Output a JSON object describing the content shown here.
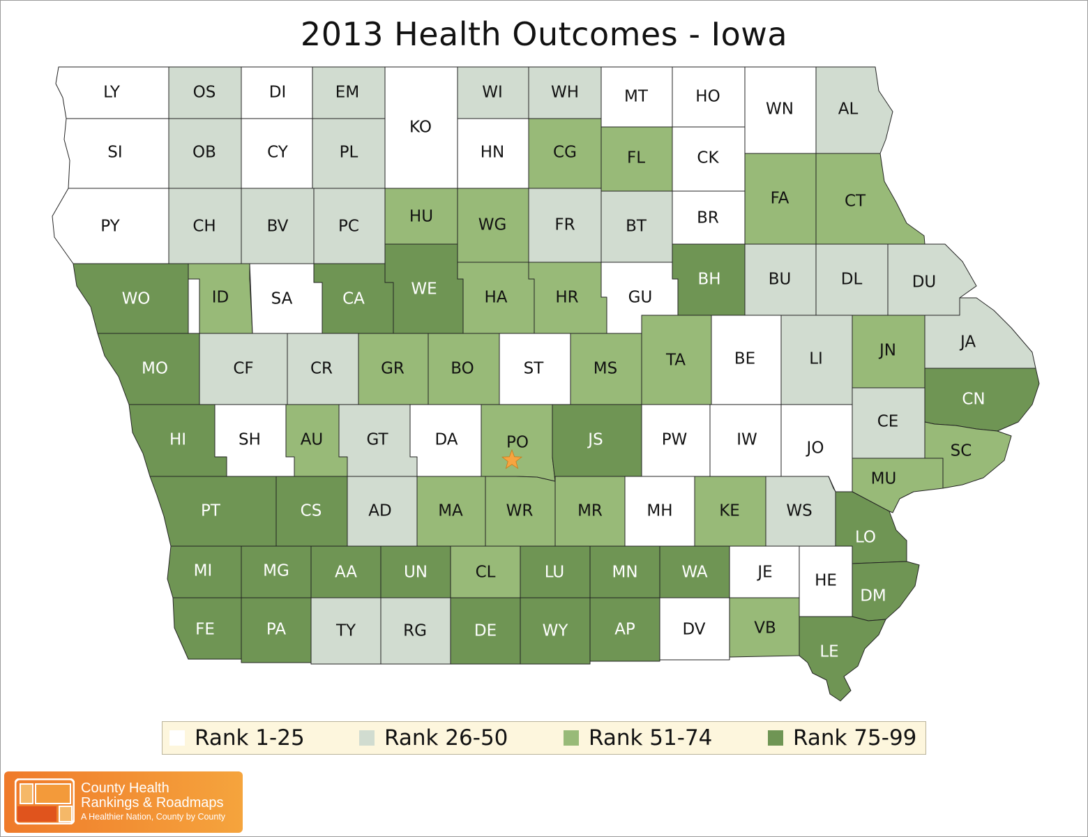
{
  "title": "2013 Health Outcomes - Iowa",
  "colors": {
    "rank_1_25": "#ffffff",
    "rank_26_50": "#d1dcd0",
    "rank_51_74": "#98ba78",
    "rank_75_99": "#6f9554",
    "border": "#222222",
    "star": "#f7a440",
    "legend_bg": "#fdf6dd",
    "logo_orange": "#ef7a2a"
  },
  "legend": [
    {
      "label": "Rank 1-25",
      "class": "rank_1_25"
    },
    {
      "label": "Rank 26-50",
      "class": "rank_26_50"
    },
    {
      "label": "Rank 51-74",
      "class": "rank_51_74"
    },
    {
      "label": "Rank 75-99",
      "class": "rank_75_99"
    }
  ],
  "counties": [
    {
      "abbr": "LY",
      "rank_class": "rank_1_25"
    },
    {
      "abbr": "OS",
      "rank_class": "rank_26_50"
    },
    {
      "abbr": "DI",
      "rank_class": "rank_1_25"
    },
    {
      "abbr": "EM",
      "rank_class": "rank_26_50"
    },
    {
      "abbr": "KO",
      "rank_class": "rank_1_25"
    },
    {
      "abbr": "WI",
      "rank_class": "rank_26_50"
    },
    {
      "abbr": "WH",
      "rank_class": "rank_26_50"
    },
    {
      "abbr": "MT",
      "rank_class": "rank_1_25"
    },
    {
      "abbr": "HO",
      "rank_class": "rank_1_25"
    },
    {
      "abbr": "WN",
      "rank_class": "rank_1_25"
    },
    {
      "abbr": "AL",
      "rank_class": "rank_26_50"
    },
    {
      "abbr": "SI",
      "rank_class": "rank_1_25"
    },
    {
      "abbr": "OB",
      "rank_class": "rank_26_50"
    },
    {
      "abbr": "CY",
      "rank_class": "rank_1_25"
    },
    {
      "abbr": "PL",
      "rank_class": "rank_26_50"
    },
    {
      "abbr": "HN",
      "rank_class": "rank_1_25"
    },
    {
      "abbr": "CG",
      "rank_class": "rank_51_74"
    },
    {
      "abbr": "FL",
      "rank_class": "rank_51_74"
    },
    {
      "abbr": "CK",
      "rank_class": "rank_1_25"
    },
    {
      "abbr": "FA",
      "rank_class": "rank_51_74"
    },
    {
      "abbr": "CT",
      "rank_class": "rank_51_74"
    },
    {
      "abbr": "PY",
      "rank_class": "rank_1_25"
    },
    {
      "abbr": "CH",
      "rank_class": "rank_26_50"
    },
    {
      "abbr": "BV",
      "rank_class": "rank_26_50"
    },
    {
      "abbr": "PC",
      "rank_class": "rank_26_50"
    },
    {
      "abbr": "HU",
      "rank_class": "rank_51_74"
    },
    {
      "abbr": "WG",
      "rank_class": "rank_51_74"
    },
    {
      "abbr": "FR",
      "rank_class": "rank_26_50"
    },
    {
      "abbr": "BT",
      "rank_class": "rank_26_50"
    },
    {
      "abbr": "BR",
      "rank_class": "rank_1_25"
    },
    {
      "abbr": "BH",
      "rank_class": "rank_75_99"
    },
    {
      "abbr": "BU",
      "rank_class": "rank_26_50"
    },
    {
      "abbr": "DL",
      "rank_class": "rank_26_50"
    },
    {
      "abbr": "DU",
      "rank_class": "rank_26_50"
    },
    {
      "abbr": "WO",
      "rank_class": "rank_75_99"
    },
    {
      "abbr": "ID",
      "rank_class": "rank_51_74"
    },
    {
      "abbr": "SA",
      "rank_class": "rank_1_25"
    },
    {
      "abbr": "CA",
      "rank_class": "rank_75_99"
    },
    {
      "abbr": "WE",
      "rank_class": "rank_75_99"
    },
    {
      "abbr": "HA",
      "rank_class": "rank_51_74"
    },
    {
      "abbr": "HR",
      "rank_class": "rank_51_74"
    },
    {
      "abbr": "GU",
      "rank_class": "rank_1_25"
    },
    {
      "abbr": "TA",
      "rank_class": "rank_51_74"
    },
    {
      "abbr": "BE",
      "rank_class": "rank_1_25"
    },
    {
      "abbr": "LI",
      "rank_class": "rank_26_50"
    },
    {
      "abbr": "JN",
      "rank_class": "rank_51_74"
    },
    {
      "abbr": "JA",
      "rank_class": "rank_26_50"
    },
    {
      "abbr": "MO",
      "rank_class": "rank_75_99"
    },
    {
      "abbr": "CF",
      "rank_class": "rank_26_50"
    },
    {
      "abbr": "CR",
      "rank_class": "rank_26_50"
    },
    {
      "abbr": "GR",
      "rank_class": "rank_51_74"
    },
    {
      "abbr": "BO",
      "rank_class": "rank_51_74"
    },
    {
      "abbr": "ST",
      "rank_class": "rank_1_25"
    },
    {
      "abbr": "MS",
      "rank_class": "rank_51_74"
    },
    {
      "abbr": "CN",
      "rank_class": "rank_75_99"
    },
    {
      "abbr": "HI",
      "rank_class": "rank_75_99"
    },
    {
      "abbr": "SH",
      "rank_class": "rank_1_25"
    },
    {
      "abbr": "AU",
      "rank_class": "rank_51_74"
    },
    {
      "abbr": "GT",
      "rank_class": "rank_26_50"
    },
    {
      "abbr": "DA",
      "rank_class": "rank_1_25"
    },
    {
      "abbr": "PO",
      "rank_class": "rank_51_74"
    },
    {
      "abbr": "JS",
      "rank_class": "rank_75_99"
    },
    {
      "abbr": "PW",
      "rank_class": "rank_1_25"
    },
    {
      "abbr": "IW",
      "rank_class": "rank_1_25"
    },
    {
      "abbr": "JO",
      "rank_class": "rank_1_25"
    },
    {
      "abbr": "CE",
      "rank_class": "rank_26_50"
    },
    {
      "abbr": "SC",
      "rank_class": "rank_51_74"
    },
    {
      "abbr": "MU",
      "rank_class": "rank_51_74"
    },
    {
      "abbr": "PT",
      "rank_class": "rank_75_99"
    },
    {
      "abbr": "CS",
      "rank_class": "rank_75_99"
    },
    {
      "abbr": "AD",
      "rank_class": "rank_26_50"
    },
    {
      "abbr": "MA",
      "rank_class": "rank_51_74"
    },
    {
      "abbr": "WR",
      "rank_class": "rank_51_74"
    },
    {
      "abbr": "MR",
      "rank_class": "rank_51_74"
    },
    {
      "abbr": "MH",
      "rank_class": "rank_1_25"
    },
    {
      "abbr": "KE",
      "rank_class": "rank_51_74"
    },
    {
      "abbr": "WS",
      "rank_class": "rank_26_50"
    },
    {
      "abbr": "LO",
      "rank_class": "rank_75_99"
    },
    {
      "abbr": "MI",
      "rank_class": "rank_75_99"
    },
    {
      "abbr": "MG",
      "rank_class": "rank_75_99"
    },
    {
      "abbr": "AA",
      "rank_class": "rank_75_99"
    },
    {
      "abbr": "UN",
      "rank_class": "rank_75_99"
    },
    {
      "abbr": "CL",
      "rank_class": "rank_51_74"
    },
    {
      "abbr": "LU",
      "rank_class": "rank_75_99"
    },
    {
      "abbr": "MN",
      "rank_class": "rank_75_99"
    },
    {
      "abbr": "WA",
      "rank_class": "rank_75_99"
    },
    {
      "abbr": "JE",
      "rank_class": "rank_1_25"
    },
    {
      "abbr": "HE",
      "rank_class": "rank_1_25"
    },
    {
      "abbr": "DM",
      "rank_class": "rank_75_99"
    },
    {
      "abbr": "FE",
      "rank_class": "rank_75_99"
    },
    {
      "abbr": "PA",
      "rank_class": "rank_75_99"
    },
    {
      "abbr": "TY",
      "rank_class": "rank_26_50"
    },
    {
      "abbr": "RG",
      "rank_class": "rank_26_50"
    },
    {
      "abbr": "DE",
      "rank_class": "rank_75_99"
    },
    {
      "abbr": "WY",
      "rank_class": "rank_75_99"
    },
    {
      "abbr": "AP",
      "rank_class": "rank_75_99"
    },
    {
      "abbr": "DV",
      "rank_class": "rank_1_25"
    },
    {
      "abbr": "VB",
      "rank_class": "rank_51_74"
    },
    {
      "abbr": "LE",
      "rank_class": "rank_75_99"
    }
  ],
  "marker": {
    "county": "PO",
    "icon": "star-icon"
  },
  "logo": {
    "line1": "County Health",
    "line2": "Rankings & Roadmaps",
    "line3": "A Healthier Nation, County by County",
    "icon": "county-grid-logo-icon"
  }
}
